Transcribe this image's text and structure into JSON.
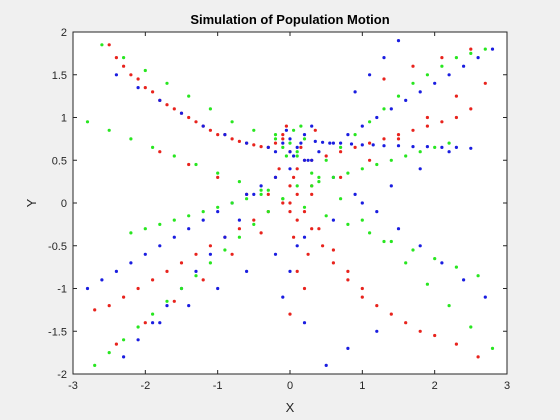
{
  "chart_data": {
    "type": "scatter",
    "title": "Simulation of Population Motion",
    "xlabel": "X",
    "ylabel": "Y",
    "xlim": [
      -3,
      3
    ],
    "ylim": [
      -2,
      2
    ],
    "xticks": [
      "-3",
      "-2",
      "-1",
      "0",
      "1",
      "2",
      "3"
    ],
    "yticks": [
      "-2",
      "-1.5",
      "-1",
      "-0.5",
      "0",
      "0.5",
      "1",
      "1.5",
      "2"
    ],
    "grid": false,
    "legend": "none",
    "series": [
      {
        "color": "#e8231d",
        "x": [
          -2.5,
          -2.4,
          -2.3,
          -2.2,
          -2.1,
          -2.0,
          -1.9,
          -1.8,
          -1.7,
          -1.6,
          -1.5,
          -1.4,
          -1.3,
          -1.2,
          -1.1,
          -1.0,
          -0.9,
          -0.8,
          -0.7,
          -0.6,
          -0.5,
          -0.4,
          -0.3,
          -0.2,
          -0.1,
          0.0,
          0.05,
          0.1,
          0.2,
          0.3,
          0.45,
          0.6,
          0.8,
          1.0,
          1.2,
          1.4,
          1.6,
          1.8,
          2.0,
          2.3,
          2.6,
          -2.7,
          -2.5,
          -2.3,
          -2.1,
          -1.9,
          -1.7,
          -1.5,
          -1.3,
          -1.1,
          -0.9,
          -0.7,
          -0.5,
          -0.3,
          -0.1,
          0.0,
          0.1,
          0.3,
          0.5,
          0.7,
          0.9,
          1.1,
          1.3,
          1.5,
          1.7,
          1.9,
          2.1,
          2.3,
          2.5,
          -2.4,
          -2.0,
          -1.6,
          -1.2,
          -0.8,
          -0.4,
          0.0,
          0.3,
          0.7,
          1.1,
          1.5,
          1.9,
          2.3,
          2.7,
          -0.2,
          0.0,
          0.1,
          0.2,
          -0.1,
          0.05,
          0.15,
          -0.05,
          0.25,
          0.3,
          0.35,
          0.1,
          -0.15,
          0.2,
          0.0,
          -0.3,
          0.4,
          0.6,
          0.8,
          1.0,
          -1.0,
          -1.4,
          -1.8,
          -0.6,
          1.3,
          1.7,
          2.1,
          2.5
        ],
        "y": [
          1.85,
          1.7,
          1.6,
          1.5,
          1.45,
          1.35,
          1.3,
          1.2,
          1.15,
          1.1,
          1.05,
          1.0,
          0.95,
          0.9,
          0.85,
          0.8,
          0.8,
          0.75,
          0.72,
          0.7,
          0.68,
          0.66,
          0.65,
          0.7,
          0.75,
          0.6,
          0.3,
          0.1,
          -0.1,
          -0.3,
          -0.5,
          -0.7,
          -0.9,
          -1.1,
          -1.2,
          -1.3,
          -1.4,
          -1.5,
          -1.55,
          -1.65,
          -1.8,
          -1.25,
          -1.2,
          -1.1,
          -1.0,
          -0.9,
          -0.8,
          -0.7,
          -0.6,
          -0.5,
          -0.4,
          -0.3,
          -0.2,
          -0.1,
          0.0,
          0.2,
          0.4,
          0.5,
          0.55,
          0.6,
          0.65,
          0.7,
          0.75,
          0.8,
          0.85,
          0.9,
          0.95,
          1.0,
          1.1,
          -1.65,
          -1.4,
          -1.15,
          -0.9,
          -0.6,
          -0.35,
          -0.1,
          0.1,
          0.3,
          0.5,
          0.75,
          1.0,
          1.25,
          1.4,
          0.3,
          0.0,
          -0.2,
          0.5,
          0.8,
          -0.4,
          0.65,
          0.9,
          -0.6,
          0.2,
          0.85,
          -0.8,
          0.4,
          -1.0,
          -1.3,
          0.1,
          -0.3,
          -0.55,
          -0.8,
          -1.0,
          0.3,
          0.45,
          0.6,
          0.1,
          1.45,
          1.6,
          1.7,
          1.8
        ]
      },
      {
        "color": "#1a1de0",
        "x": [
          -2.8,
          -2.6,
          -2.4,
          -2.2,
          -2.0,
          -1.8,
          -1.6,
          -1.4,
          -1.2,
          -1.0,
          -0.8,
          -0.6,
          -0.4,
          -0.2,
          0.0,
          0.2,
          0.4,
          0.6,
          0.8,
          1.0,
          1.2,
          1.4,
          1.6,
          1.8,
          2.0,
          2.2,
          2.4,
          2.6,
          2.8,
          -2.4,
          -2.1,
          -1.8,
          -1.5,
          -1.2,
          -0.9,
          -0.6,
          -0.3,
          0.0,
          0.3,
          0.6,
          0.9,
          1.2,
          1.5,
          1.8,
          2.1,
          2.4,
          2.7,
          -1.8,
          -1.4,
          -1.0,
          -0.6,
          -0.2,
          0.2,
          0.6,
          1.0,
          1.4,
          1.8,
          2.2,
          -0.1,
          0.0,
          0.1,
          0.2,
          -0.2,
          0.05,
          0.15,
          -0.05,
          0.25,
          0.3,
          0.1,
          0.0,
          -0.1,
          0.2,
          0.35,
          0.45,
          0.55,
          0.7,
          0.85,
          1.0,
          1.15,
          1.3,
          1.5,
          1.7,
          1.9,
          2.1,
          2.3,
          2.5,
          -0.5,
          -0.7,
          -0.9,
          -1.1,
          -1.3,
          -1.5,
          -1.7,
          -1.9,
          -2.1,
          -2.3,
          0.9,
          1.1,
          1.3,
          1.5,
          1.2,
          0.8,
          0.5
        ],
        "y": [
          -1.0,
          -0.9,
          -0.8,
          -0.7,
          -0.6,
          -0.5,
          -0.4,
          -0.3,
          -0.2,
          -0.1,
          0.0,
          0.1,
          0.2,
          0.3,
          0.4,
          0.5,
          0.6,
          0.7,
          0.8,
          0.9,
          1.0,
          1.1,
          1.2,
          1.3,
          1.4,
          1.5,
          1.6,
          1.7,
          1.8,
          1.5,
          1.35,
          1.2,
          1.05,
          0.9,
          0.8,
          0.7,
          0.65,
          0.6,
          0.5,
          0.3,
          0.1,
          -0.1,
          -0.3,
          -0.5,
          -0.7,
          -0.9,
          -1.1,
          -1.4,
          -1.2,
          -1.0,
          -0.8,
          -0.6,
          -0.4,
          -0.2,
          0.0,
          0.2,
          0.4,
          0.6,
          0.7,
          0.75,
          0.65,
          0.8,
          0.6,
          0.55,
          0.7,
          0.85,
          0.5,
          0.9,
          -0.5,
          -0.8,
          -1.1,
          -1.4,
          0.72,
          0.71,
          0.7,
          0.7,
          0.69,
          0.68,
          0.68,
          0.67,
          0.67,
          0.66,
          0.66,
          0.65,
          0.65,
          0.64,
          0.1,
          -0.2,
          -0.4,
          -0.6,
          -0.8,
          -1.0,
          -1.2,
          -1.4,
          -1.6,
          -1.8,
          1.3,
          1.5,
          1.7,
          1.9,
          -1.5,
          -1.7,
          -1.9
        ]
      },
      {
        "color": "#28e620",
        "x": [
          -2.7,
          -2.5,
          -2.3,
          -2.1,
          -1.9,
          -1.7,
          -1.5,
          -1.3,
          -1.1,
          -0.9,
          -0.7,
          -0.5,
          -0.3,
          -0.1,
          0.1,
          0.3,
          0.5,
          0.7,
          0.9,
          1.1,
          1.3,
          1.5,
          1.7,
          1.9,
          2.1,
          2.3,
          2.5,
          2.7,
          -2.6,
          -2.3,
          -2.0,
          -1.7,
          -1.4,
          -1.1,
          -0.8,
          -0.5,
          -0.2,
          0.1,
          0.4,
          0.7,
          1.0,
          1.3,
          1.6,
          1.9,
          2.2,
          2.5,
          2.8,
          -2.8,
          -2.5,
          -2.2,
          -1.9,
          -1.6,
          -1.3,
          -1.0,
          -0.7,
          -0.4,
          -0.1,
          0.2,
          0.5,
          0.8,
          1.1,
          1.4,
          1.7,
          2.0,
          2.3,
          2.6,
          -0.2,
          0.0,
          0.1,
          -0.1,
          0.2,
          0.05,
          -0.05,
          0.15,
          -0.3,
          0.3,
          -0.4,
          0.4,
          -0.6,
          0.6,
          -0.8,
          0.8,
          -1.0,
          1.0,
          -1.2,
          1.2,
          -1.4,
          1.4,
          -1.6,
          1.6,
          -1.8,
          1.8,
          -2.0,
          2.0,
          -2.2,
          2.2
        ],
        "y": [
          -1.9,
          -1.75,
          -1.6,
          -1.45,
          -1.3,
          -1.15,
          -1.0,
          -0.85,
          -0.7,
          -0.55,
          -0.4,
          -0.25,
          -0.1,
          0.05,
          0.2,
          0.35,
          0.5,
          0.65,
          0.8,
          0.95,
          1.1,
          1.25,
          1.4,
          1.5,
          1.6,
          1.7,
          1.75,
          1.8,
          1.85,
          1.7,
          1.55,
          1.4,
          1.25,
          1.1,
          0.95,
          0.85,
          0.75,
          0.55,
          0.3,
          0.05,
          -0.2,
          -0.45,
          -0.7,
          -0.95,
          -1.2,
          -1.45,
          -1.7,
          0.95,
          0.85,
          0.75,
          0.65,
          0.55,
          0.45,
          0.35,
          0.25,
          0.15,
          0.05,
          -0.05,
          -0.15,
          -0.25,
          -0.35,
          -0.45,
          -0.55,
          -0.65,
          -0.75,
          -0.85,
          0.8,
          0.7,
          0.6,
          0.65,
          0.75,
          0.85,
          0.55,
          0.9,
          0.15,
          0.2,
          0.1,
          0.25,
          0.05,
          0.3,
          0.0,
          0.35,
          -0.05,
          0.4,
          -0.1,
          0.45,
          -0.15,
          0.5,
          -0.2,
          0.55,
          -0.25,
          0.6,
          -0.3,
          0.65,
          -0.35,
          0.7
        ]
      }
    ]
  }
}
